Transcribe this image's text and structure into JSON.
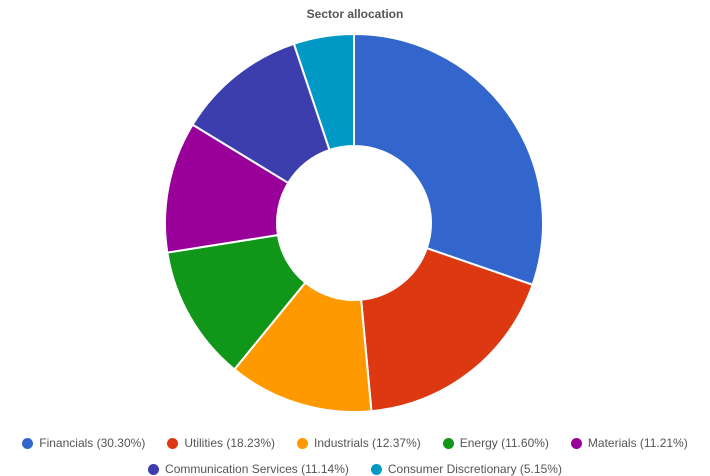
{
  "chart_data": {
    "type": "pie",
    "title": "Sector allocation",
    "donut": true,
    "slices": [
      {
        "label": "Financials",
        "value": 30.3,
        "legend": "Financials (30.30%)",
        "color": "#3366cc"
      },
      {
        "label": "Utilities",
        "value": 18.23,
        "legend": "Utilities (18.23%)",
        "color": "#dc3912"
      },
      {
        "label": "Industrials",
        "value": 12.37,
        "legend": "Industrials (12.37%)",
        "color": "#ff9900"
      },
      {
        "label": "Energy",
        "value": 11.6,
        "legend": "Energy (11.60%)",
        "color": "#109618"
      },
      {
        "label": "Materials",
        "value": 11.21,
        "legend": "Materials (11.21%)",
        "color": "#990099"
      },
      {
        "label": "Communication Services",
        "value": 11.14,
        "legend": "Communication Services (11.14%)",
        "color": "#3b3eac"
      },
      {
        "label": "Consumer Discretionary",
        "value": 5.15,
        "legend": "Consumer Discretionary (5.15%)",
        "color": "#0099c6"
      }
    ],
    "legend_position": "bottom"
  }
}
